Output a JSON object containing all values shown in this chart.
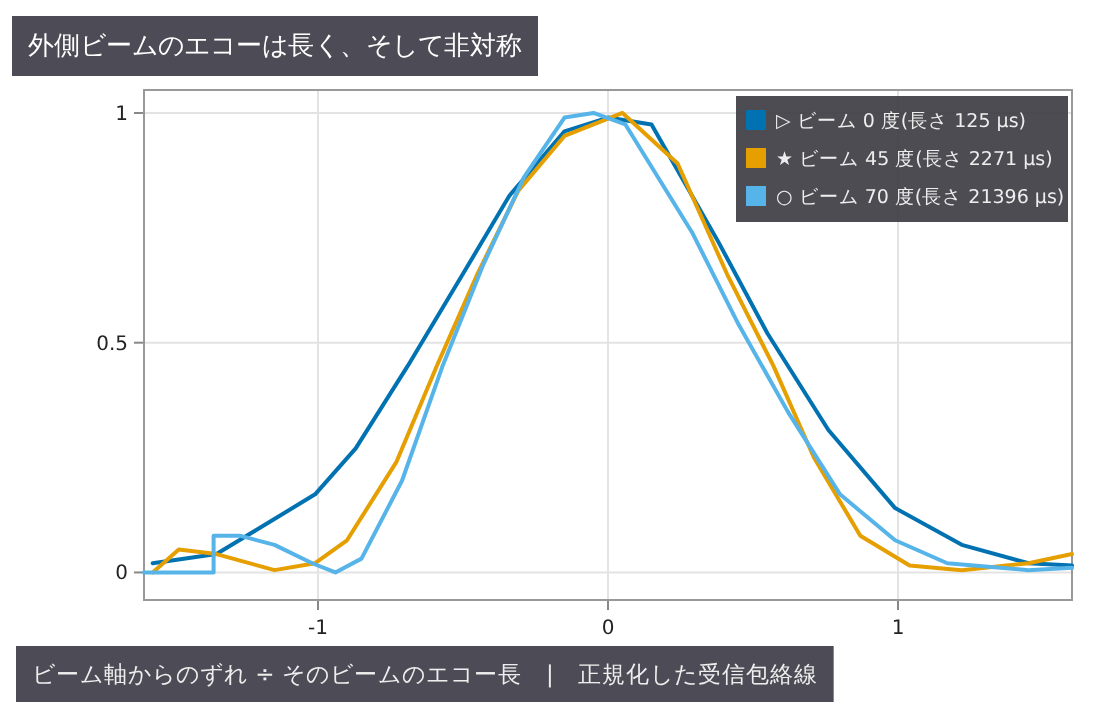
{
  "chart_data": {
    "type": "line",
    "title": "外側ビームのエコーは長く、そして非対称",
    "xlabel": "ビーム軸からのずれ ÷ そのビームのエコー長　|　正規化した受信包絡線",
    "xlim": [
      -1.6,
      1.6
    ],
    "ylim": [
      -0.06,
      1.05
    ],
    "xticks": [
      -1,
      0,
      1
    ],
    "yticks": [
      0,
      0.5,
      1
    ],
    "grid": true,
    "legend": "top right",
    "marker": "none",
    "line_style": "solid",
    "series": [
      {
        "name": "▷ ビーム 0 度(長さ 125 μs)",
        "color": "#0072b2",
        "x": [
          -1.57,
          -1.35,
          -1.01,
          -0.87,
          -0.69,
          -0.5,
          -0.34,
          -0.15,
          0.0,
          0.15,
          0.38,
          0.55,
          0.76,
          0.99,
          1.22,
          1.45,
          1.6
        ],
        "values": [
          0.02,
          0.04,
          0.17,
          0.27,
          0.45,
          0.65,
          0.82,
          0.96,
          0.99,
          0.975,
          0.72,
          0.52,
          0.31,
          0.14,
          0.06,
          0.02,
          0.015
        ]
      },
      {
        "name": "★ ビーム 45 度(長さ 2271 μs)",
        "color": "#e69f00",
        "x": [
          -1.57,
          -1.48,
          -1.35,
          -1.15,
          -1.01,
          -0.9,
          -0.73,
          -0.59,
          -0.45,
          -0.31,
          -0.15,
          0.05,
          0.24,
          0.41,
          0.57,
          0.71,
          0.87,
          1.04,
          1.22,
          1.45,
          1.6
        ],
        "values": [
          0.0,
          0.05,
          0.04,
          0.005,
          0.02,
          0.07,
          0.24,
          0.45,
          0.65,
          0.83,
          0.95,
          1.0,
          0.89,
          0.65,
          0.45,
          0.25,
          0.08,
          0.015,
          0.005,
          0.02,
          0.04
        ]
      },
      {
        "name": "○ ビーム 70 度(長さ 21396 μs)",
        "color": "#56b4e9",
        "x": [
          -1.6,
          -1.36,
          -1.36,
          -1.27,
          -1.15,
          -1.02,
          -0.94,
          -0.85,
          -0.71,
          -0.57,
          -0.43,
          -0.29,
          -0.15,
          -0.05,
          0.06,
          0.29,
          0.45,
          0.62,
          0.8,
          0.99,
          1.17,
          1.45,
          1.6
        ],
        "values": [
          0.0,
          0.0,
          0.08,
          0.08,
          0.06,
          0.02,
          0.0,
          0.03,
          0.2,
          0.45,
          0.67,
          0.86,
          0.99,
          1.0,
          0.975,
          0.74,
          0.54,
          0.35,
          0.17,
          0.07,
          0.02,
          0.005,
          0.01
        ]
      }
    ]
  }
}
